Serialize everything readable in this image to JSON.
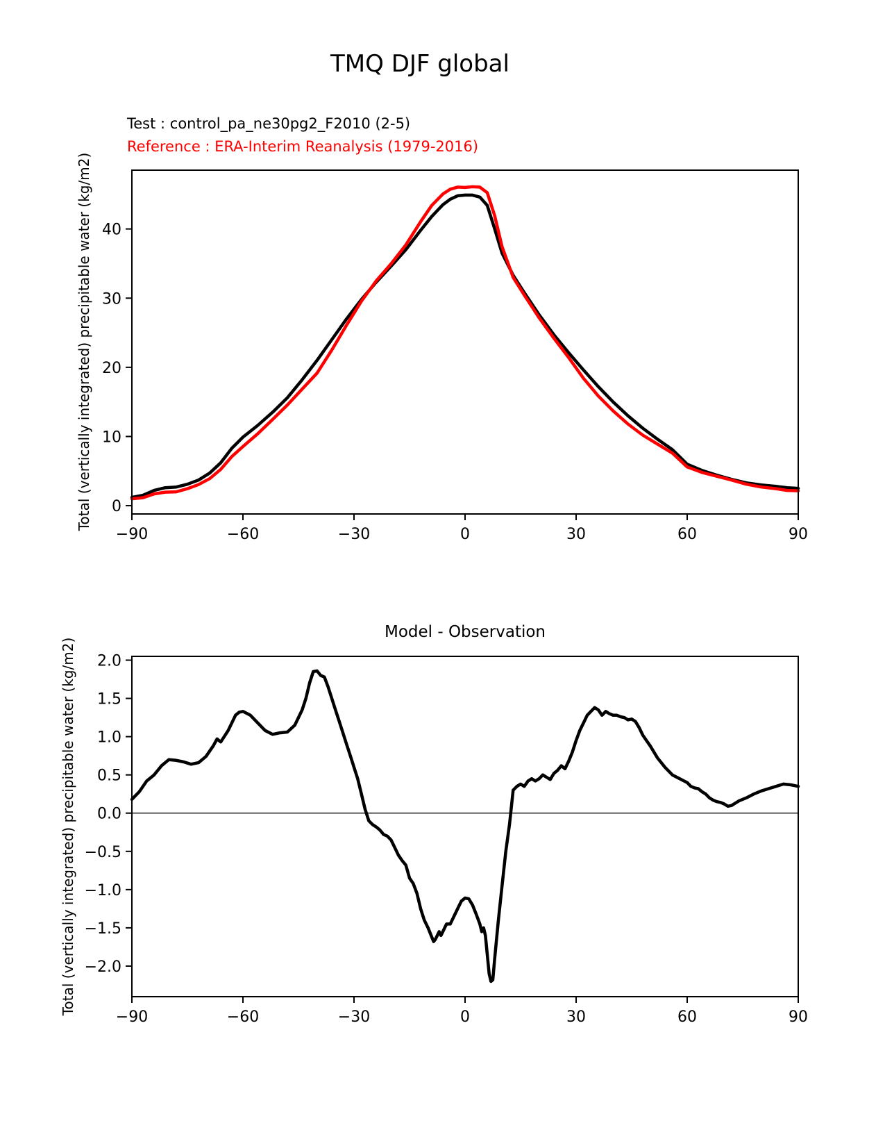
{
  "figure": {
    "title": "TMQ DJF global"
  },
  "legend": {
    "test": "Test : control_pa_ne30pg2_F2010 (2-5)",
    "reference": "Reference : ERA-Interim Reanalysis (1979-2016)",
    "test_color": "#000000",
    "reference_color": "#ff0000"
  },
  "chart_data": [
    {
      "type": "line",
      "title": "",
      "xlabel": "",
      "ylabel": "Total (vertically integrated) precipitable water (kg/m2)",
      "xlim": [
        -90,
        90
      ],
      "ylim": [
        -1.2,
        48.5
      ],
      "grid": false,
      "legend_position": "above-axes-top-left",
      "xticks": {
        "values": [
          -90,
          -60,
          -30,
          0,
          30,
          60,
          90
        ],
        "labels": [
          "−90",
          "−60",
          "−30",
          "0",
          "30",
          "60",
          "90"
        ]
      },
      "yticks": {
        "values": [
          0,
          10,
          20,
          30,
          40
        ],
        "labels": [
          "0",
          "10",
          "20",
          "30",
          "40"
        ]
      },
      "x": [
        -90,
        -87,
        -84,
        -81,
        -78,
        -75,
        -72,
        -69,
        -66,
        -63,
        -60,
        -56,
        -52,
        -48,
        -44,
        -40,
        -36,
        -32,
        -28,
        -24,
        -20,
        -16,
        -12,
        -9,
        -6,
        -4,
        -2,
        0,
        2,
        4,
        6,
        8,
        10,
        13,
        16,
        20,
        24,
        28,
        32,
        36,
        40,
        44,
        48,
        52,
        56,
        60,
        64,
        68,
        72,
        76,
        80,
        84,
        87,
        90
      ],
      "series": [
        {
          "key": "test",
          "name": "Test : control_pa_ne30pg2_F2010 (2-5)",
          "color": "#000000",
          "values": [
            1.2,
            1.5,
            2.2,
            2.6,
            2.7,
            3.1,
            3.7,
            4.7,
            6.2,
            8.3,
            9.9,
            11.6,
            13.5,
            15.6,
            18.2,
            21.0,
            24.0,
            27.0,
            29.8,
            32.3,
            34.6,
            37.0,
            39.8,
            41.8,
            43.5,
            44.3,
            44.8,
            44.9,
            44.9,
            44.6,
            43.4,
            40.0,
            36.5,
            33.3,
            30.8,
            27.6,
            24.7,
            22.1,
            19.6,
            17.2,
            15.0,
            13.0,
            11.2,
            9.6,
            8.1,
            6.0,
            5.1,
            4.4,
            3.8,
            3.3,
            3.0,
            2.8,
            2.6,
            2.5
          ]
        },
        {
          "key": "reference",
          "name": "Reference : ERA-Interim Reanalysis (1979-2016)",
          "color": "#ff0000",
          "values": [
            1.0,
            1.15,
            1.7,
            1.95,
            2.0,
            2.45,
            3.05,
            3.9,
            5.25,
            7.1,
            8.55,
            10.4,
            12.45,
            14.55,
            16.85,
            19.15,
            22.5,
            26.1,
            29.55,
            32.5,
            34.95,
            37.7,
            41.05,
            43.4,
            45.05,
            45.75,
            46.05,
            46.0,
            46.1,
            46.05,
            45.25,
            41.9,
            37.45,
            33.0,
            30.45,
            27.15,
            24.2,
            21.4,
            18.4,
            15.85,
            13.7,
            11.8,
            10.2,
            8.9,
            7.6,
            5.6,
            4.8,
            4.25,
            3.7,
            3.1,
            2.7,
            2.45,
            2.2,
            2.15
          ]
        }
      ]
    },
    {
      "type": "line",
      "title": "Model - Observation",
      "xlabel": "",
      "ylabel": "Total (vertically integrated) precipitable water (kg/m2)",
      "xlim": [
        -90,
        90
      ],
      "ylim": [
        -2.4,
        2.05
      ],
      "grid": false,
      "zero_line": {
        "value": 0.0,
        "color": "#808080"
      },
      "xticks": {
        "values": [
          -90,
          -60,
          -30,
          0,
          30,
          60,
          90
        ],
        "labels": [
          "−90",
          "−60",
          "−30",
          "0",
          "30",
          "60",
          "90"
        ]
      },
      "yticks": {
        "values": [
          -2.0,
          -1.5,
          -1.0,
          -0.5,
          0.0,
          0.5,
          1.0,
          1.5,
          2.0
        ],
        "labels": [
          "−2.0",
          "−1.5",
          "−1.0",
          "−0.5",
          "0.0",
          "0.5",
          "1.0",
          "1.5",
          "2.0"
        ]
      },
      "x": [
        -90,
        -88,
        -86,
        -84,
        -82,
        -80,
        -78,
        -76,
        -74,
        -72,
        -70,
        -68,
        -67,
        -66,
        -64,
        -62,
        -61,
        -60,
        -58,
        -56,
        -54,
        -52,
        -50,
        -48,
        -46,
        -44,
        -43,
        -42,
        -41,
        -40,
        -39,
        -38,
        -37,
        -36,
        -35,
        -34,
        -33,
        -32,
        -31,
        -30,
        -29,
        -28,
        -27,
        -26,
        -25,
        -24,
        -23,
        -22,
        -21,
        -20,
        -19,
        -18,
        -17,
        -16,
        -15,
        -14,
        -13,
        -12,
        -11,
        -10,
        -9,
        -8.5,
        -8,
        -7,
        -6.5,
        -6,
        -5,
        -4,
        -3,
        -2,
        -1,
        0,
        1,
        2,
        3,
        4,
        4.5,
        5,
        5.5,
        6,
        6.5,
        7,
        7.5,
        8,
        9,
        10,
        11,
        12,
        13,
        14,
        15,
        16,
        17,
        18,
        19,
        20,
        21,
        22,
        23,
        24,
        25,
        26,
        27,
        28,
        29,
        30,
        31,
        32,
        33,
        34,
        35,
        36,
        37,
        38,
        39,
        40,
        41,
        42,
        43,
        44,
        45,
        46,
        47,
        48,
        49,
        50,
        52,
        54,
        56,
        58,
        60,
        61,
        62,
        63,
        64,
        65,
        66,
        67,
        68,
        69,
        70,
        71,
        72,
        73,
        74,
        76,
        78,
        80,
        82,
        84,
        86,
        88,
        90
      ],
      "series": [
        {
          "key": "difference",
          "name": "Model - Observation",
          "color": "#000000",
          "values": [
            0.18,
            0.28,
            0.42,
            0.5,
            0.62,
            0.7,
            0.69,
            0.67,
            0.64,
            0.66,
            0.74,
            0.88,
            0.97,
            0.93,
            1.08,
            1.28,
            1.32,
            1.33,
            1.28,
            1.18,
            1.08,
            1.03,
            1.05,
            1.06,
            1.15,
            1.35,
            1.5,
            1.7,
            1.85,
            1.86,
            1.8,
            1.78,
            1.65,
            1.5,
            1.35,
            1.2,
            1.05,
            0.9,
            0.75,
            0.6,
            0.45,
            0.25,
            0.05,
            -0.1,
            -0.15,
            -0.18,
            -0.22,
            -0.28,
            -0.3,
            -0.35,
            -0.45,
            -0.55,
            -0.62,
            -0.68,
            -0.85,
            -0.92,
            -1.05,
            -1.25,
            -1.4,
            -1.5,
            -1.62,
            -1.68,
            -1.65,
            -1.55,
            -1.6,
            -1.55,
            -1.45,
            -1.45,
            -1.35,
            -1.25,
            -1.15,
            -1.11,
            -1.12,
            -1.2,
            -1.32,
            -1.45,
            -1.55,
            -1.5,
            -1.6,
            -1.85,
            -2.1,
            -2.2,
            -2.18,
            -1.9,
            -1.4,
            -0.95,
            -0.5,
            -0.15,
            0.3,
            0.35,
            0.38,
            0.35,
            0.42,
            0.45,
            0.42,
            0.45,
            0.5,
            0.47,
            0.44,
            0.52,
            0.56,
            0.62,
            0.58,
            0.68,
            0.8,
            0.95,
            1.08,
            1.18,
            1.28,
            1.33,
            1.38,
            1.35,
            1.28,
            1.33,
            1.3,
            1.28,
            1.28,
            1.26,
            1.25,
            1.22,
            1.23,
            1.2,
            1.12,
            1.02,
            0.95,
            0.88,
            0.72,
            0.6,
            0.5,
            0.45,
            0.4,
            0.35,
            0.33,
            0.32,
            0.28,
            0.25,
            0.2,
            0.17,
            0.15,
            0.14,
            0.12,
            0.09,
            0.1,
            0.13,
            0.16,
            0.2,
            0.25,
            0.29,
            0.32,
            0.35,
            0.38,
            0.37,
            0.35
          ]
        }
      ]
    }
  ]
}
